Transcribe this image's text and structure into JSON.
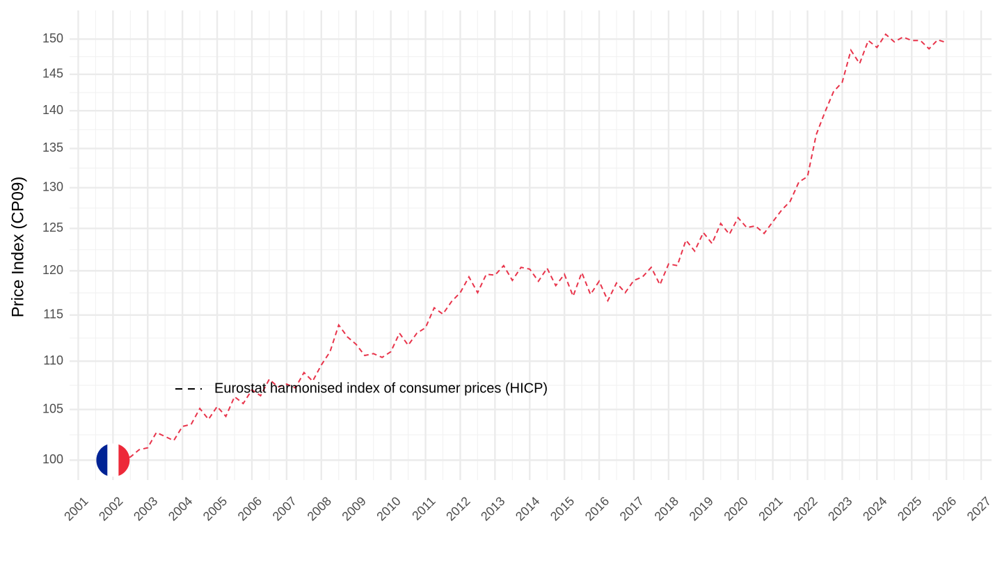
{
  "chart_data": {
    "type": "line",
    "y_label": "Price Index (CP09)",
    "log_y": true,
    "grid": true,
    "legend_position": "inside-left",
    "x": [
      2002,
      2002.25,
      2002.5,
      2002.75,
      2003,
      2003.25,
      2003.5,
      2003.75,
      2004,
      2004.25,
      2004.5,
      2004.75,
      2005,
      2005.25,
      2005.5,
      2005.75,
      2006,
      2006.25,
      2006.5,
      2006.75,
      2007,
      2007.25,
      2007.5,
      2007.75,
      2008,
      2008.25,
      2008.5,
      2008.75,
      2009,
      2009.25,
      2009.5,
      2009.75,
      2010,
      2010.25,
      2010.5,
      2010.75,
      2011,
      2011.25,
      2011.5,
      2011.75,
      2012,
      2012.25,
      2012.5,
      2012.75,
      2013,
      2013.25,
      2013.5,
      2013.75,
      2014,
      2014.25,
      2014.5,
      2014.75,
      2015,
      2015.25,
      2015.5,
      2015.75,
      2016,
      2016.25,
      2016.5,
      2016.75,
      2017,
      2017.25,
      2017.5,
      2017.75,
      2018,
      2018.25,
      2018.5,
      2018.75,
      2019,
      2019.25,
      2019.5,
      2019.75,
      2020,
      2020.25,
      2020.5,
      2020.75,
      2021,
      2021.25,
      2021.5,
      2021.75,
      2022,
      2022.25,
      2022.5,
      2022.75,
      2023,
      2023.25,
      2023.5,
      2023.75,
      2024,
      2024.25,
      2024.5,
      2024.75,
      2025,
      2025.25,
      2025.5,
      2025.75,
      2026
    ],
    "series": [
      {
        "name": "Eurostat harmonised index of consumer prices (HICP)",
        "color": "#e8334a",
        "values": [
          100,
          100.2,
          100.3,
          101.0,
          101.2,
          102.7,
          102.3,
          101.9,
          103.3,
          103.5,
          105.1,
          104.0,
          105.3,
          104.3,
          106.3,
          105.6,
          107.0,
          106.4,
          108.1,
          107.3,
          107.6,
          107.2,
          108.8,
          107.9,
          109.6,
          111.0,
          113.9,
          112.6,
          111.8,
          110.6,
          110.8,
          110.4,
          111.0,
          113.0,
          111.7,
          113.0,
          113.6,
          115.8,
          115.1,
          116.5,
          117.5,
          119.3,
          117.5,
          119.6,
          119.5,
          120.6,
          118.9,
          120.4,
          120.2,
          118.8,
          120.3,
          118.3,
          119.6,
          117.1,
          119.8,
          117.3,
          118.8,
          116.6,
          118.6,
          117.5,
          118.9,
          119.3,
          120.4,
          118.4,
          120.8,
          120.6,
          123.6,
          122.3,
          124.5,
          123.2,
          125.6,
          124.3,
          126.3,
          125.1,
          125.3,
          124.4,
          125.8,
          127.2,
          128.3,
          130.7,
          131.4,
          136.8,
          139.8,
          142.6,
          143.9,
          148.4,
          146.5,
          149.8,
          148.8,
          150.7,
          149.6,
          150.3,
          149.8,
          149.8,
          148.6,
          149.9,
          149.5
        ]
      }
    ],
    "xlim": [
      2000.75,
      2027.3
    ],
    "xticks": [
      2001,
      2002,
      2003,
      2004,
      2005,
      2006,
      2007,
      2008,
      2009,
      2010,
      2011,
      2012,
      2013,
      2014,
      2015,
      2016,
      2017,
      2018,
      2019,
      2020,
      2021,
      2022,
      2023,
      2024,
      2025,
      2026,
      2027
    ],
    "ylim": [
      98.1,
      154.2
    ],
    "yticks": [
      100,
      105,
      110,
      115,
      120,
      125,
      130,
      135,
      140,
      145,
      150
    ]
  }
}
